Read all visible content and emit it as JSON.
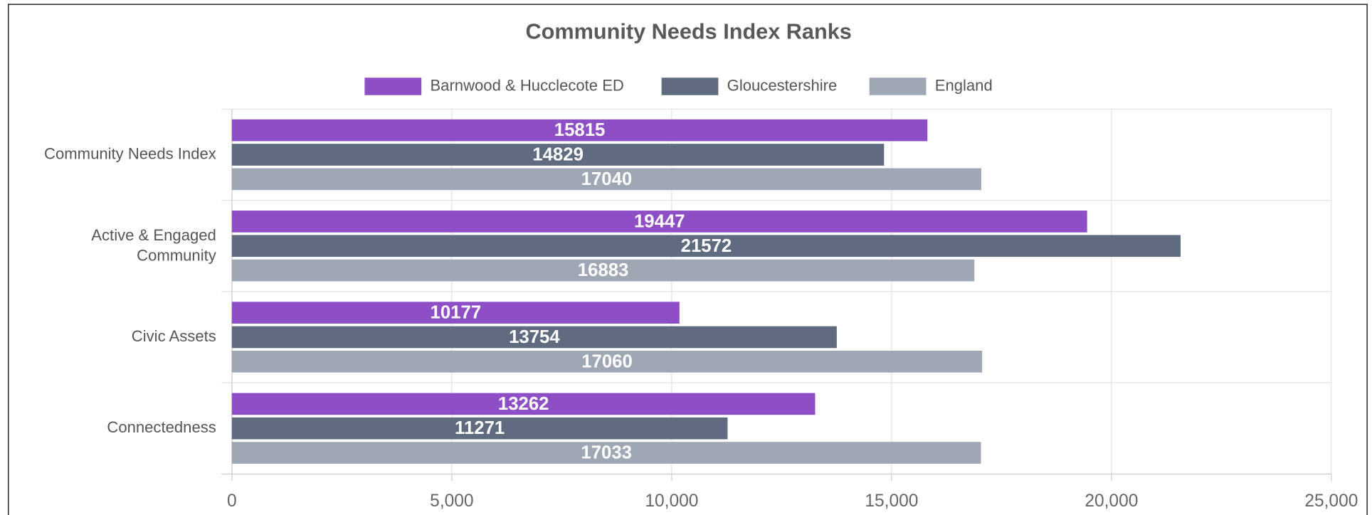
{
  "chart_data": {
    "type": "hbar",
    "title": "Community Needs Index Ranks",
    "categories": [
      "Community Needs Index",
      "Active & Engaged Community",
      "Civic Assets",
      "Connectedness"
    ],
    "series": [
      {
        "name": "Barnwood & Hucclecote ED",
        "color": "#8e4ec6",
        "values": [
          15815,
          19447,
          10177,
          13262
        ]
      },
      {
        "name": "Gloucestershire",
        "color": "#5f6b7e",
        "values": [
          14829,
          21572,
          13754,
          11271
        ]
      },
      {
        "name": "England",
        "color": "#a0a7b4",
        "values": [
          17040,
          16883,
          17060,
          17033
        ]
      }
    ],
    "xlim": [
      0,
      25000
    ],
    "xticks": [
      0,
      {
        "value": 5000,
        "label": "5,000"
      },
      {
        "value": 10000,
        "label": "10,000"
      },
      {
        "value": 15000,
        "label": "15,000"
      },
      {
        "value": 20000,
        "label": "20,000"
      },
      {
        "value": 25000,
        "label": "25,000"
      }
    ],
    "grid": true,
    "legend": "top"
  }
}
